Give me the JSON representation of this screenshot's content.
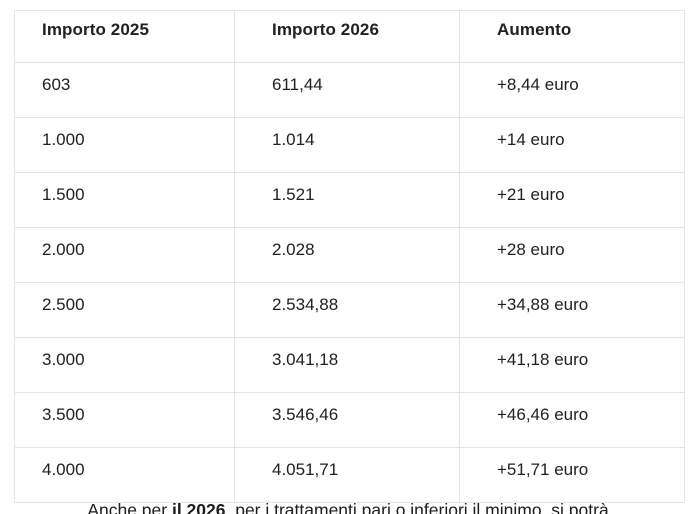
{
  "colors": {
    "background": "#ffffff",
    "text": "#202124",
    "border": "#e4e4e4"
  },
  "table": {
    "columns": [
      "Importo 2025",
      "Importo 2026",
      "Aumento"
    ],
    "rows": [
      [
        "603",
        "611,44",
        "+8,44 euro"
      ],
      [
        "1.000",
        "1.014",
        "+14 euro"
      ],
      [
        "1.500",
        "1.521",
        "+21 euro"
      ],
      [
        "2.000",
        "2.028",
        "+28 euro"
      ],
      [
        "2.500",
        "2.534,88",
        "+34,88 euro"
      ],
      [
        "3.000",
        "3.041,18",
        "+41,18 euro"
      ],
      [
        "3.500",
        "3.546,46",
        "+46,46 euro"
      ],
      [
        "4.000",
        "4.051,71",
        "+51,71 euro"
      ]
    ]
  },
  "caption": {
    "prefix": "Anche per ",
    "bold": "il 2026",
    "suffix": ", per i trattamenti pari o inferiori il minimo, si potrà"
  }
}
